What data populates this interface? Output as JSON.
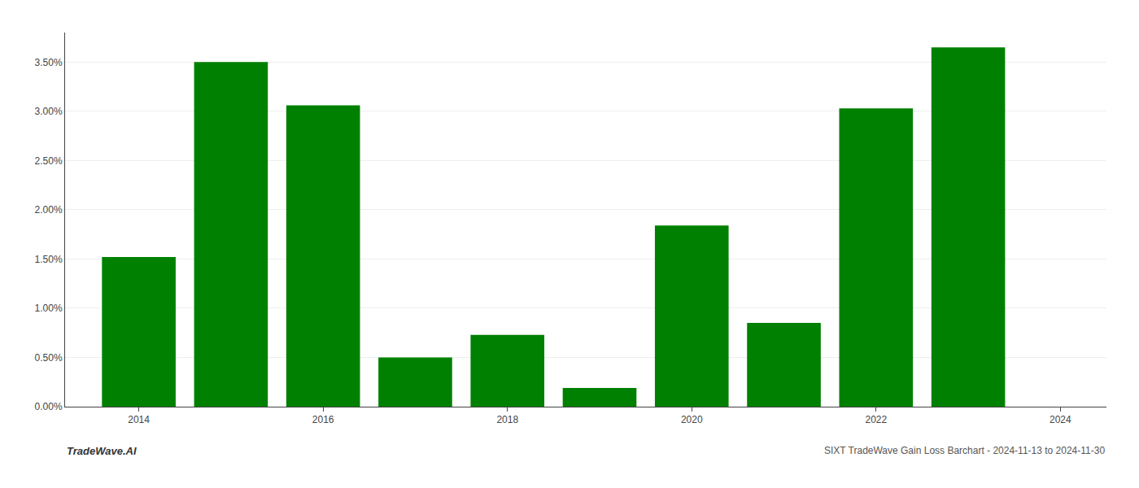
{
  "chart_data": {
    "type": "bar",
    "x": [
      2014,
      2015,
      2016,
      2017,
      2018,
      2019,
      2020,
      2021,
      2022,
      2023
    ],
    "values": [
      0.0152,
      0.035,
      0.0306,
      0.005,
      0.0073,
      0.0019,
      0.0184,
      0.0085,
      0.0303,
      0.0365
    ],
    "color": "#008000",
    "xlim": [
      2013.2,
      2024.5
    ],
    "xticks": [
      2014,
      2016,
      2018,
      2020,
      2022,
      2024
    ],
    "ylim": [
      0,
      0.038
    ],
    "yticks": [
      {
        "value": 0.0,
        "label": "0.00%"
      },
      {
        "value": 0.005,
        "label": "0.50%"
      },
      {
        "value": 0.01,
        "label": "1.00%"
      },
      {
        "value": 0.015,
        "label": "1.50%"
      },
      {
        "value": 0.02,
        "label": "2.00%"
      },
      {
        "value": 0.025,
        "label": "2.50%"
      },
      {
        "value": 0.03,
        "label": "3.00%"
      },
      {
        "value": 0.035,
        "label": "3.50%"
      }
    ],
    "grid": true,
    "annotations": [
      "TradeWave.AI",
      "SIXT TradeWave Gain Loss Barchart - 2024-11-13 to 2024-11-30"
    ]
  }
}
